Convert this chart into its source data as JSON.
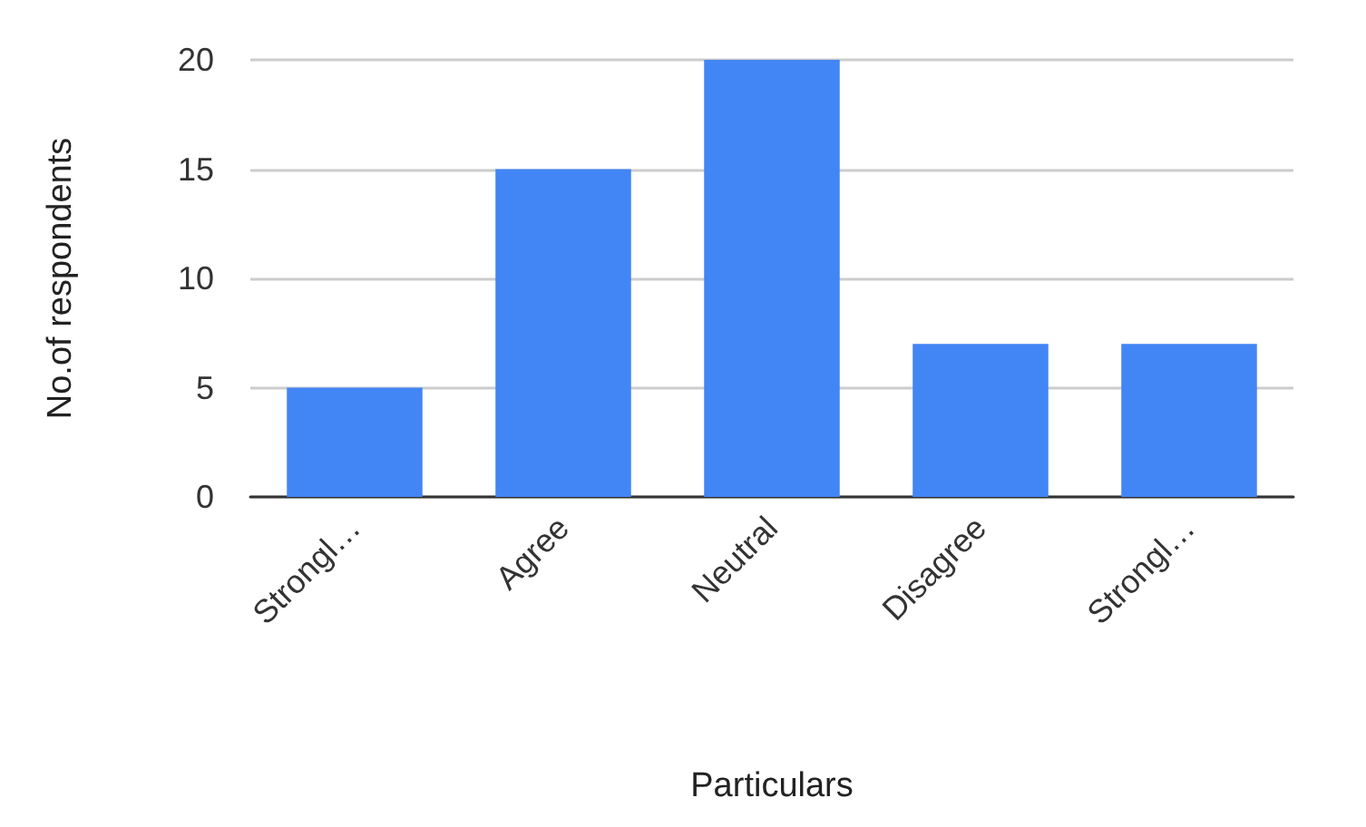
{
  "chart_data": {
    "type": "bar",
    "xlabel": "Particulars",
    "ylabel": "No.of respondents",
    "categories": [
      "Strongl…",
      "Agree",
      "Neutral",
      "Disagree",
      "Strongl…"
    ],
    "values": [
      5,
      15,
      20,
      7,
      7
    ],
    "color": "#4285f4",
    "ylim": [
      0,
      20
    ],
    "yticks": [
      0,
      5,
      10,
      15,
      20
    ],
    "grid": "y"
  }
}
